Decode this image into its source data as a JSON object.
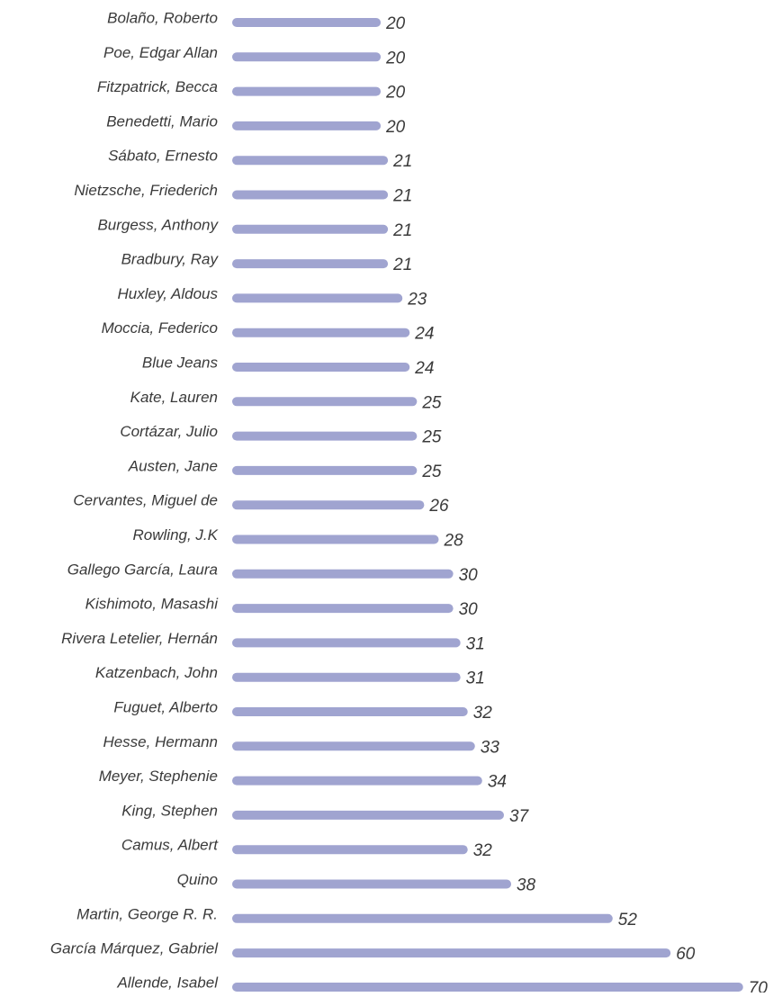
{
  "chart_data": {
    "type": "bar",
    "orientation": "horizontal",
    "categories": [
      "Bolaño, Roberto",
      "Poe, Edgar Allan",
      "Fitzpatrick, Becca",
      "Benedetti, Mario",
      "Sábato, Ernesto",
      "Nietzsche, Friederich",
      "Burgess, Anthony",
      "Bradbury, Ray",
      "Huxley, Aldous",
      "Moccia, Federico",
      "Blue Jeans",
      "Kate, Lauren",
      "Cortázar, Julio",
      "Austen, Jane",
      "Cervantes, Miguel de",
      "Rowling, J.K",
      "Gallego García, Laura",
      "Kishimoto, Masashi",
      "Rivera Letelier, Hernán",
      "Katzenbach, John",
      "Fuguet, Alberto",
      "Hesse, Hermann",
      "Meyer, Stephenie",
      "King, Stephen",
      "Camus, Albert",
      "Quino",
      "Martin, George R. R.",
      "García Márquez, Gabriel",
      "Allende, Isabel"
    ],
    "values": [
      20,
      20,
      20,
      20,
      21,
      21,
      21,
      21,
      23,
      24,
      24,
      25,
      25,
      25,
      26,
      28,
      30,
      30,
      31,
      31,
      32,
      33,
      34,
      37,
      32,
      38,
      52,
      60,
      70
    ],
    "color": "#a0a4d0",
    "xlim": [
      0,
      74
    ]
  }
}
